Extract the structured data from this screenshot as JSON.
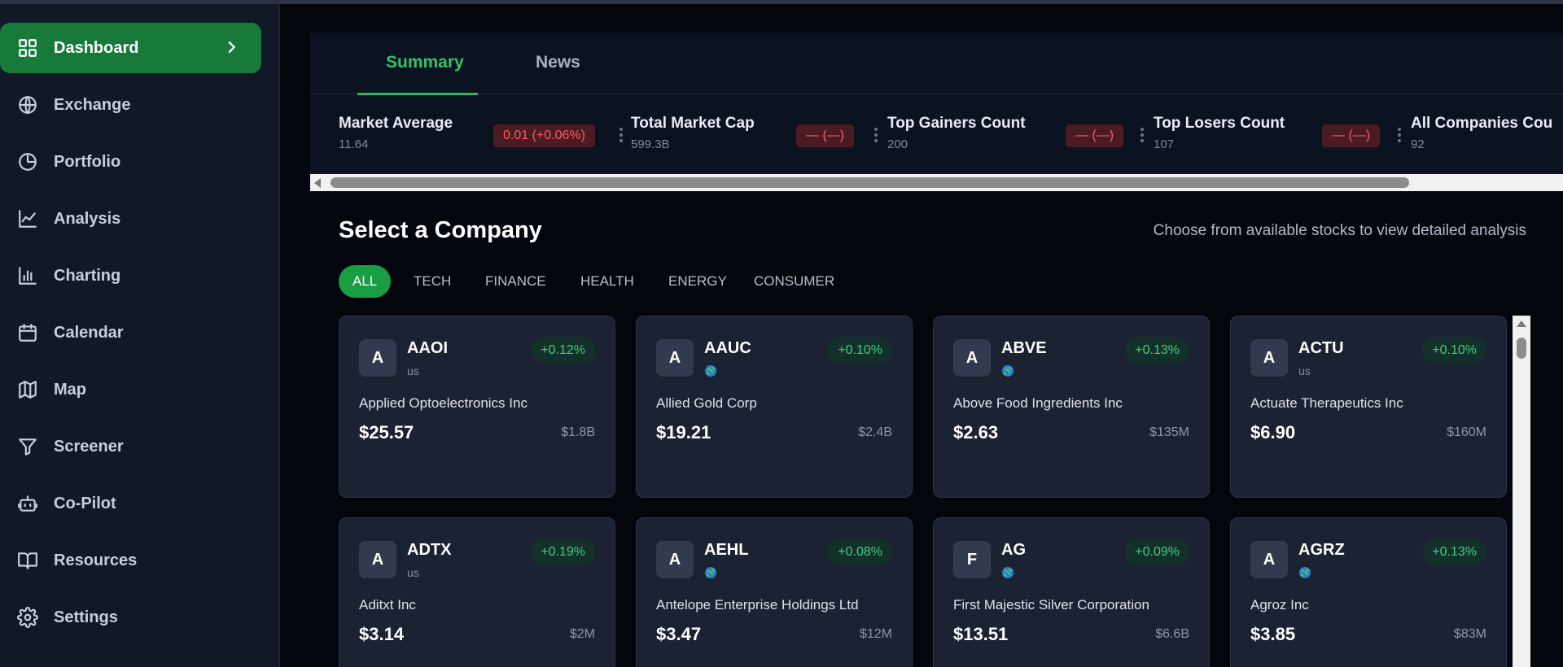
{
  "sidebar": {
    "items": [
      {
        "label": "Dashboard",
        "icon": "dashboard-grid-icon",
        "active": true
      },
      {
        "label": "Exchange",
        "icon": "globe-icon"
      },
      {
        "label": "Portfolio",
        "icon": "pie-chart-icon"
      },
      {
        "label": "Analysis",
        "icon": "line-chart-icon"
      },
      {
        "label": "Charting",
        "icon": "bar-chart-icon"
      },
      {
        "label": "Calendar",
        "icon": "calendar-icon"
      },
      {
        "label": "Map",
        "icon": "map-icon"
      },
      {
        "label": "Screener",
        "icon": "filter-icon"
      },
      {
        "label": "Co-Pilot",
        "icon": "bot-icon"
      },
      {
        "label": "Resources",
        "icon": "book-icon"
      },
      {
        "label": "Settings",
        "icon": "gear-icon"
      }
    ]
  },
  "summary": {
    "tabs": [
      {
        "label": "Summary",
        "active": true
      },
      {
        "label": "News"
      }
    ],
    "metrics": [
      {
        "label": "Market Average",
        "value": "11.64",
        "badge": "0.01 (+0.06%)"
      },
      {
        "label": "Total Market Cap",
        "value": "599.3B",
        "badge": "— (—)"
      },
      {
        "label": "Top Gainers Count",
        "value": "200",
        "badge": "— (—)"
      },
      {
        "label": "Top Losers Count",
        "value": "107",
        "badge": "— (—)"
      },
      {
        "label": "All Companies Cou",
        "value": "92"
      }
    ]
  },
  "companies": {
    "title": "Select a Company",
    "subtitle": "Choose from available stocks to view detailed analysis",
    "filters": [
      "ALL",
      "TECH",
      "FINANCE",
      "HEALTH",
      "ENERGY",
      "CONSUMER"
    ],
    "active_filter": "ALL",
    "cards": [
      {
        "avatar": "A",
        "ticker": "AAOI",
        "region": "us",
        "change": "+0.12%",
        "name": "Applied Optoelectronics Inc",
        "price": "$25.57",
        "mcap": "$1.8B"
      },
      {
        "avatar": "A",
        "ticker": "AAUC",
        "region": "",
        "globe": true,
        "change": "+0.10%",
        "name": "Allied Gold Corp",
        "price": "$19.21",
        "mcap": "$2.4B"
      },
      {
        "avatar": "A",
        "ticker": "ABVE",
        "region": "",
        "globe": true,
        "change": "+0.13%",
        "name": "Above Food Ingredients Inc",
        "price": "$2.63",
        "mcap": "$135M"
      },
      {
        "avatar": "A",
        "ticker": "ACTU",
        "region": "us",
        "change": "+0.10%",
        "name": "Actuate Therapeutics Inc",
        "price": "$6.90",
        "mcap": "$160M"
      },
      {
        "avatar": "A",
        "ticker": "ADTX",
        "region": "us",
        "change": "+0.19%",
        "name": "Aditxt Inc",
        "price": "$3.14",
        "mcap": "$2M"
      },
      {
        "avatar": "A",
        "ticker": "AEHL",
        "region": "",
        "globe": true,
        "change": "+0.08%",
        "name": "Antelope Enterprise Holdings Ltd",
        "price": "$3.47",
        "mcap": "$12M"
      },
      {
        "avatar": "F",
        "ticker": "AG",
        "region": "",
        "globe": true,
        "change": "+0.09%",
        "name": "First Majestic Silver Corporation",
        "price": "$13.51",
        "mcap": "$6.6B"
      },
      {
        "avatar": "A",
        "ticker": "AGRZ",
        "region": "",
        "globe": true,
        "change": "+0.13%",
        "name": "Agroz Inc",
        "price": "$3.85",
        "mcap": "$83M"
      }
    ]
  },
  "colors": {
    "accent_green": "#177a3a",
    "positive": "#3fd27c",
    "negative": "#ff5d5d",
    "sidebar_bg": "#111826",
    "card_bg": "#1b2231"
  }
}
